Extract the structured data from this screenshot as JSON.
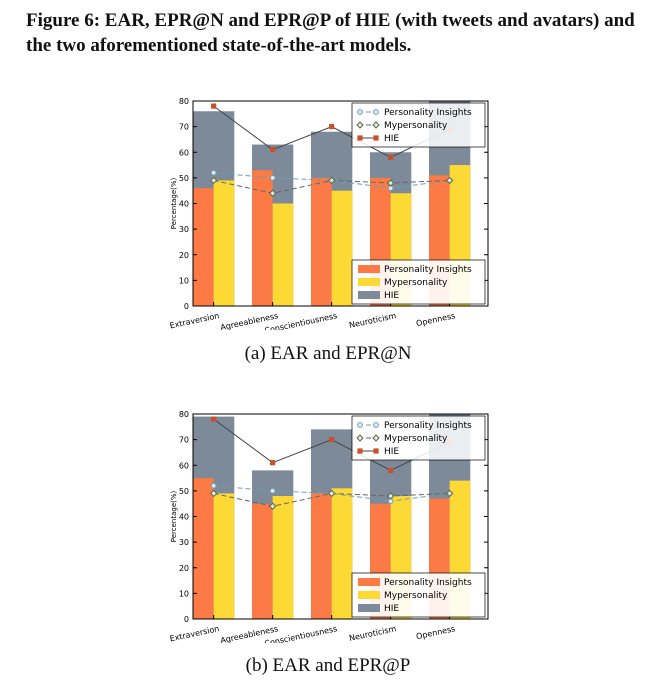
{
  "heading": "Figure 6: EAR, EPR@N and EPR@P of HIE (with tweets and avatars) and the two aforementioned state-of-the-art models.",
  "colors": {
    "personality_insights_bar": "#fb7a45",
    "mypersonality_bar": "#fcd935",
    "hie_bar": "#7c8a99",
    "personality_insights_line": "#6b9fb8",
    "mypersonality_line": "#666666",
    "hie_line": "#444444",
    "hie_marker": "#c8502a"
  },
  "chart_data": [
    {
      "type": "bar",
      "caption": "(a) EAR and EPR@N",
      "ylabel": "Percentage(%)",
      "ylim": [
        0,
        80
      ],
      "yticks": [
        "0",
        "10",
        "20",
        "30",
        "40",
        "50",
        "60",
        "70",
        "80"
      ],
      "categories": [
        "Extraversion",
        "Agreeableness",
        "Conscientiousness",
        "Neuroticism",
        "Openness"
      ],
      "bar_series": [
        {
          "name": "Personality Insights",
          "values": [
            46,
            53,
            50,
            50,
            51
          ]
        },
        {
          "name": "Mypersonality",
          "values": [
            49,
            40,
            45,
            44,
            55
          ]
        },
        {
          "name": "HIE",
          "values": [
            76,
            63,
            68,
            60,
            80
          ]
        }
      ],
      "line_series": [
        {
          "name": "Personality Insights",
          "values": [
            52,
            50,
            49,
            46,
            49
          ]
        },
        {
          "name": "Mypersonality",
          "values": [
            49,
            44,
            49,
            48,
            49
          ]
        },
        {
          "name": "HIE",
          "values": [
            78,
            61,
            70,
            58,
            69
          ]
        }
      ],
      "line_legend_position": "top-right",
      "bar_legend_position": "bottom-right"
    },
    {
      "type": "bar",
      "caption": "(b) EAR and EPR@P",
      "ylabel": "Percentage(%)",
      "ylim": [
        0,
        80
      ],
      "yticks": [
        "0",
        "10",
        "20",
        "30",
        "40",
        "50",
        "60",
        "70",
        "80"
      ],
      "categories": [
        "Extraversion",
        "Agreeableness",
        "Conscientiousness",
        "Neuroticism",
        "Openness"
      ],
      "bar_series": [
        {
          "name": "Personality Insights",
          "values": [
            55,
            45,
            49,
            45,
            47
          ]
        },
        {
          "name": "Mypersonality",
          "values": [
            49,
            48,
            51,
            48,
            54
          ]
        },
        {
          "name": "HIE",
          "values": [
            79,
            58,
            74,
            62,
            80
          ]
        }
      ],
      "line_series": [
        {
          "name": "Personality Insights",
          "values": [
            52,
            50,
            49,
            46,
            49
          ]
        },
        {
          "name": "Mypersonality",
          "values": [
            49,
            44,
            49,
            48,
            49
          ]
        },
        {
          "name": "HIE",
          "values": [
            78,
            61,
            70,
            58,
            69
          ]
        }
      ],
      "line_legend_position": "top-right",
      "bar_legend_position": "bottom-right"
    }
  ]
}
